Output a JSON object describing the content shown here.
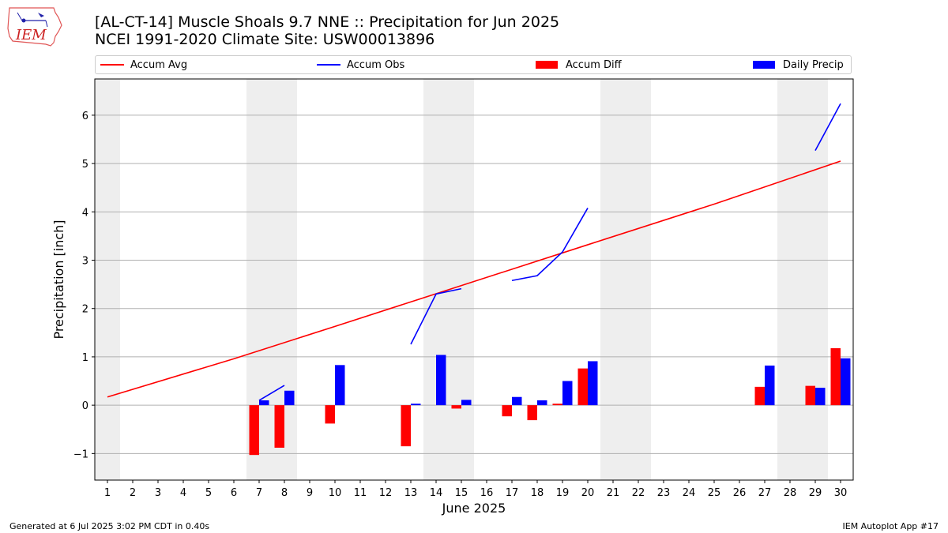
{
  "header": {
    "title_line1": "[AL-CT-14] Muscle Shoals 9.7 NNE :: Precipitation for Jun 2025",
    "title_line2": "NCEI 1991-2020 Climate Site: USW00013896",
    "logo_text": "IEM"
  },
  "footer": {
    "generated": "Generated at 6 Jul 2025 3:02 PM CDT in 0.40s",
    "app": "IEM Autoplot App #17"
  },
  "colors": {
    "avg": "#ff0000",
    "obs": "#0000ff",
    "diff": "#ff0000",
    "daily": "#0000ff",
    "weekend_shade": "#eeeeee",
    "grid": "#b0b0b0"
  },
  "chart_data": {
    "type": "bar",
    "xlabel": "June 2025",
    "ylabel": "Precipitation [inch]",
    "xlim": [
      0.5,
      30.5
    ],
    "ylim": [
      -1.55,
      6.75
    ],
    "yticks": [
      -1,
      0,
      1,
      2,
      3,
      4,
      5,
      6
    ],
    "ytick_labels": [
      "−1",
      "0",
      "1",
      "2",
      "3",
      "4",
      "5",
      "6"
    ],
    "days": [
      1,
      2,
      3,
      4,
      5,
      6,
      7,
      8,
      9,
      10,
      11,
      12,
      13,
      14,
      15,
      16,
      17,
      18,
      19,
      20,
      21,
      22,
      23,
      24,
      25,
      26,
      27,
      28,
      29,
      30
    ],
    "grid": "horizontal",
    "legend_placement": "top",
    "weekend_shaded_days": [
      1,
      7,
      8,
      14,
      15,
      21,
      22,
      28,
      29
    ],
    "legend": {
      "accum_avg": "Accum Avg",
      "accum_obs": "Accum Obs",
      "accum_diff": "Accum Diff",
      "daily_precip": "Daily Precip"
    },
    "accum_avg": {
      "x": [
        1,
        6,
        10,
        20,
        25,
        30
      ],
      "y": [
        0.17,
        0.96,
        1.63,
        3.32,
        4.16,
        5.05
      ]
    },
    "accum_obs_segments": [
      {
        "x": [
          7,
          8
        ],
        "y": [
          0.1,
          0.41
        ]
      },
      {
        "x": [
          13,
          14,
          15
        ],
        "y": [
          1.26,
          2.3,
          2.41
        ]
      },
      {
        "x": [
          17,
          18,
          19,
          20
        ],
        "y": [
          2.58,
          2.68,
          3.17,
          4.08
        ]
      },
      {
        "x": [
          29,
          30
        ],
        "y": [
          5.27,
          6.24
        ]
      }
    ],
    "accum_diff": {
      "days": [
        7,
        8,
        10,
        13,
        15,
        17,
        18,
        19,
        20,
        27,
        29,
        30
      ],
      "values": [
        -1.03,
        -0.88,
        -0.38,
        -0.85,
        -0.07,
        -0.23,
        -0.31,
        0.03,
        0.76,
        0.38,
        0.4,
        1.18
      ]
    },
    "daily_precip": {
      "days": [
        7,
        8,
        10,
        13,
        14,
        15,
        17,
        18,
        19,
        20,
        27,
        29,
        30
      ],
      "values": [
        0.1,
        0.3,
        0.83,
        0.03,
        1.04,
        0.11,
        0.17,
        0.1,
        0.5,
        0.91,
        0.82,
        0.36,
        0.97
      ]
    }
  }
}
